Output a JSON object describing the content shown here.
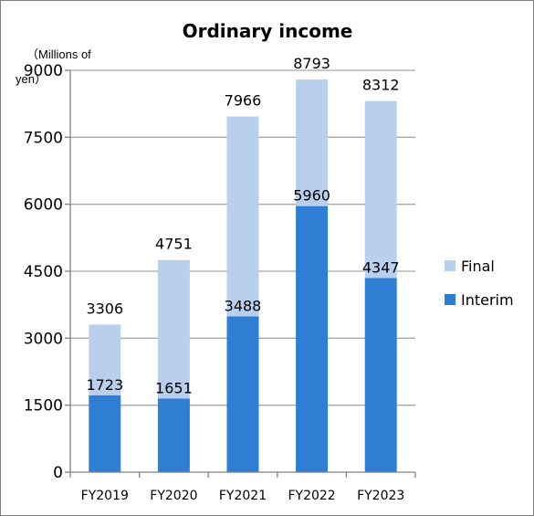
{
  "chart_data": {
    "type": "bar",
    "stacked": true,
    "title": "Ordinary income",
    "unit_label_line1": "（Millions of",
    "unit_label_line2": "yen）",
    "categories": [
      "FY2019",
      "FY2020",
      "FY2021",
      "FY2022",
      "FY2023"
    ],
    "series": [
      {
        "name": "Interim",
        "values": [
          1723,
          1651,
          3488,
          5960,
          4347
        ],
        "color": "#2e7fd3"
      },
      {
        "name": "Final",
        "values": [
          1583,
          3100,
          4478,
          2833,
          3965
        ],
        "color": "#b8cfee"
      }
    ],
    "interim_labels": [
      "1723",
      "1651",
      "3488",
      "5960",
      "4347"
    ],
    "total_labels": [
      "3306",
      "4751",
      "7966",
      "8793",
      "8312"
    ],
    "yticks": [
      "0",
      "1500",
      "3000",
      "4500",
      "6000",
      "7500",
      "9000"
    ],
    "ylim": [
      0,
      9000
    ],
    "legend": [
      {
        "name": "Final",
        "color": "#b8cfee"
      },
      {
        "name": "Interim",
        "color": "#2e7fd3"
      }
    ],
    "legend_position": "right",
    "grid": true
  }
}
